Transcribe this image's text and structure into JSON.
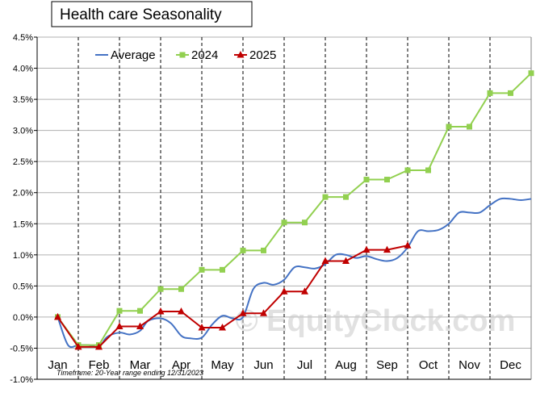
{
  "chart_data": {
    "type": "line",
    "title": "Health care Seasonality",
    "y_tick_labels": [
      "4.5%",
      "4.0%",
      "3.5%",
      "3.0%",
      "2.5%",
      "2.0%",
      "1.5%",
      "1.0%",
      "0.5%",
      "0.0%",
      "-0.5%",
      "-1.0%"
    ],
    "ylim": [
      -1.0,
      4.5
    ],
    "y_unit": "%",
    "months": [
      "Jan",
      "Feb",
      "Mar",
      "Apr",
      "May",
      "Jun",
      "Jul",
      "Aug",
      "Sep",
      "Oct",
      "Nov",
      "Dec"
    ],
    "footnote": "Timeframe: 20-Year range ending 12/31/2023",
    "watermark": "© EquityClock.com",
    "legend_position": "top-left",
    "grid": true,
    "series": [
      {
        "name": "Average",
        "color": "#4472c4",
        "marker": "none",
        "x": [
          0,
          0.25,
          0.5,
          0.75,
          1.0,
          1.2,
          1.5,
          1.75,
          2.0,
          2.2,
          2.5,
          2.75,
          3.0,
          3.2,
          3.5,
          3.75,
          4.0,
          4.25,
          4.5,
          4.75,
          5.0,
          5.25,
          5.5,
          5.75,
          6.0,
          6.25,
          6.5,
          6.75,
          7.0,
          7.25,
          7.5,
          7.75,
          8.0,
          8.25,
          8.5,
          8.75,
          9.0,
          9.25,
          9.5,
          9.75,
          10.0,
          10.25,
          10.5,
          10.75,
          11.0,
          11.25,
          11.5
        ],
        "values": [
          0.0,
          -0.45,
          -0.45,
          -0.45,
          -0.48,
          -0.32,
          -0.25,
          -0.28,
          -0.22,
          -0.06,
          -0.02,
          -0.1,
          -0.3,
          -0.34,
          -0.33,
          -0.12,
          0.02,
          -0.02,
          0.0,
          0.45,
          0.55,
          0.52,
          0.6,
          0.8,
          0.8,
          0.78,
          0.85,
          1.0,
          1.0,
          0.95,
          0.98,
          0.93,
          0.9,
          0.95,
          1.12,
          1.38,
          1.38,
          1.4,
          1.5,
          1.68,
          1.68,
          1.68,
          1.8,
          1.9,
          1.9,
          1.88,
          1.9
        ]
      },
      {
        "name": "2024",
        "color": "#92d050",
        "marker": "square",
        "x": [
          0,
          0.5,
          1.0,
          1.5,
          2.0,
          2.5,
          3.0,
          3.5,
          4.0,
          4.5,
          5.0,
          5.5,
          6.0,
          6.5,
          7.0,
          7.5,
          8.0,
          8.5,
          9.0,
          9.5,
          10.0,
          10.5,
          11.0,
          11.5
        ],
        "values": [
          0.0,
          -0.45,
          -0.45,
          0.1,
          0.1,
          0.45,
          0.45,
          0.76,
          0.76,
          1.07,
          1.07,
          1.52,
          1.52,
          1.93,
          1.93,
          2.21,
          2.21,
          2.36,
          2.36,
          3.06,
          3.06,
          3.6,
          3.6,
          3.92
        ]
      },
      {
        "name": "2025",
        "color": "#c00000",
        "marker": "triangle",
        "x": [
          0,
          0.5,
          1.0,
          1.5,
          2.0,
          2.5,
          3.0,
          3.5,
          4.0,
          4.5,
          5.0,
          5.5,
          6.0,
          6.5,
          7.0,
          7.5,
          8.0,
          8.5
        ],
        "values": [
          0.0,
          -0.48,
          -0.48,
          -0.15,
          -0.15,
          0.09,
          0.09,
          -0.17,
          -0.17,
          0.06,
          0.06,
          0.41,
          0.41,
          0.9,
          0.9,
          1.08,
          1.08,
          1.15
        ]
      }
    ]
  }
}
